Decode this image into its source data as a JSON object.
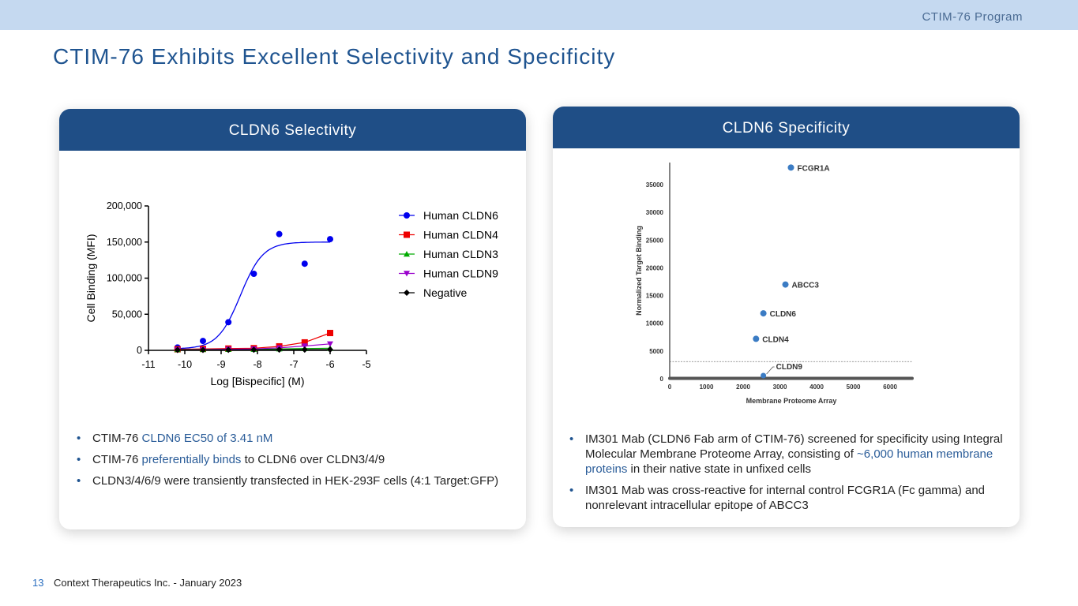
{
  "header": {
    "program_label": "CTIM-76 Program",
    "title": "CTIM-76 Exhibits Excellent Selectivity and Specificity"
  },
  "left_card": {
    "heading": "CLDN6 Selectivity",
    "bullets": [
      {
        "pre": "CTIM-76 ",
        "hl": "CLDN6 EC50 of 3.41 nM",
        "post": ""
      },
      {
        "pre": "CTIM-76 ",
        "hl": "preferentially binds",
        "post": " to CLDN6 over CLDN3/4/9"
      },
      {
        "pre": "CLDN3/4/6/9 were transiently transfected in HEK-293F cells (4:1 Target:GFP)",
        "hl": "",
        "post": ""
      }
    ]
  },
  "right_card": {
    "heading": "CLDN6 Specificity",
    "bullets": [
      {
        "pre": "IM301 Mab (CLDN6 Fab arm of CTIM-76) screened for specificity using Integral Molecular Membrane Proteome Array, consisting of ",
        "hl": "~6,000 human membrane proteins",
        "post": " in their native state in unfixed cells"
      },
      {
        "pre": "IM301 Mab was cross-reactive for internal control FCGR1A (Fc gamma) and nonrelevant intracellular epitope of ABCC3",
        "hl": "",
        "post": ""
      }
    ]
  },
  "footer": {
    "page_number": "13",
    "company": "Context Therapeutics Inc. - January 2023"
  },
  "chart_data": [
    {
      "type": "scatter",
      "title": "",
      "xlabel": "Log [Bispecific] (M)",
      "ylabel": "Cell Binding (MFI)",
      "xlim": [
        -11,
        -5
      ],
      "ylim": [
        0,
        200000
      ],
      "x_ticks": [
        "-11",
        "-10",
        "-9",
        "-8",
        "-7",
        "-6",
        "-5"
      ],
      "y_ticks": [
        "0",
        "50,000",
        "100,000",
        "150,000",
        "200,000"
      ],
      "legend_position": "right",
      "series": [
        {
          "name": "Human CLDN6",
          "marker": "circle",
          "color": "#0000ee",
          "x": [
            -10.2,
            -9.5,
            -8.8,
            -8.1,
            -7.4,
            -6.7,
            -6.0
          ],
          "values": [
            4000,
            13000,
            39000,
            106000,
            161000,
            120000,
            154000
          ],
          "fit": {
            "bottom": 2000,
            "top": 150000,
            "logEC50": -8.47,
            "hill": 1.4
          }
        },
        {
          "name": "Human CLDN4",
          "marker": "square",
          "color": "#ee0000",
          "x": [
            -10.2,
            -9.5,
            -8.8,
            -8.1,
            -7.4,
            -6.7,
            -6.0
          ],
          "values": [
            1500,
            2000,
            2500,
            3000,
            5500,
            11000,
            24000
          ]
        },
        {
          "name": "Human CLDN3",
          "marker": "triangle-up",
          "color": "#00aa00",
          "x": [
            -10.2,
            -9.5,
            -8.8,
            -8.1,
            -7.4,
            -6.7,
            -6.0
          ],
          "values": [
            1000,
            1200,
            1300,
            1500,
            2000,
            2500,
            3000
          ]
        },
        {
          "name": "Human CLDN9",
          "marker": "triangle-down",
          "color": "#9900cc",
          "x": [
            -10.2,
            -9.5,
            -8.8,
            -8.1,
            -7.4,
            -6.7,
            -6.0
          ],
          "values": [
            800,
            1000,
            1500,
            2000,
            3500,
            6000,
            9000
          ]
        },
        {
          "name": "Negative",
          "marker": "diamond",
          "color": "#000000",
          "x": [
            -10.2,
            -9.5,
            -8.8,
            -8.1,
            -7.4,
            -6.7,
            -6.0
          ],
          "values": [
            500,
            600,
            700,
            800,
            900,
            1000,
            1100
          ]
        }
      ]
    },
    {
      "type": "scatter",
      "title": "",
      "xlabel": "Membrane Proteome Array",
      "ylabel": "Normalized Target Binding",
      "xlim": [
        0,
        6600
      ],
      "ylim": [
        0,
        39000
      ],
      "x_ticks": [
        "0",
        "1000",
        "2000",
        "3000",
        "4000",
        "5000",
        "6000"
      ],
      "y_ticks": [
        "0",
        "5000",
        "10000",
        "15000",
        "20000",
        "25000",
        "30000",
        "35000"
      ],
      "threshold": 3100,
      "labeled_points": [
        {
          "label": "FCGR1A",
          "x": 3300,
          "y": 38100
        },
        {
          "label": "ABCC3",
          "x": 3150,
          "y": 17000
        },
        {
          "label": "CLDN6",
          "x": 2550,
          "y": 11800
        },
        {
          "label": "CLDN4",
          "x": 2350,
          "y": 7200
        },
        {
          "label": "CLDN9",
          "x": 2550,
          "y": 100
        }
      ],
      "baseline": {
        "x_range": [
          0,
          6600
        ],
        "y": 0
      }
    }
  ]
}
